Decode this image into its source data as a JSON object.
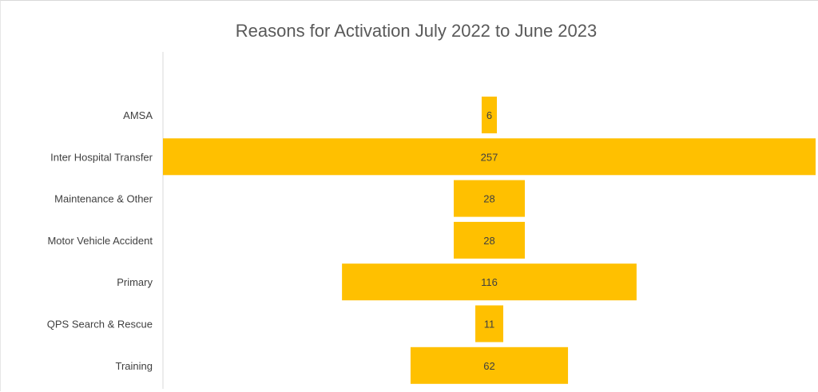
{
  "chart_data": {
    "type": "bar",
    "orientation": "horizontal",
    "alignment": "centered",
    "title": "Reasons for Activation July 2022 to June 2023",
    "xlabel": "",
    "ylabel": "",
    "categories": [
      "AMSA",
      "Inter Hospital Transfer",
      "Maintenance & Other",
      "Motor Vehicle Accident",
      "Primary",
      "QPS Search & Rescue",
      "Training"
    ],
    "values": [
      6,
      257,
      28,
      28,
      116,
      11,
      62
    ],
    "bar_color": "#FFC000",
    "grid": false,
    "legend": "none"
  }
}
